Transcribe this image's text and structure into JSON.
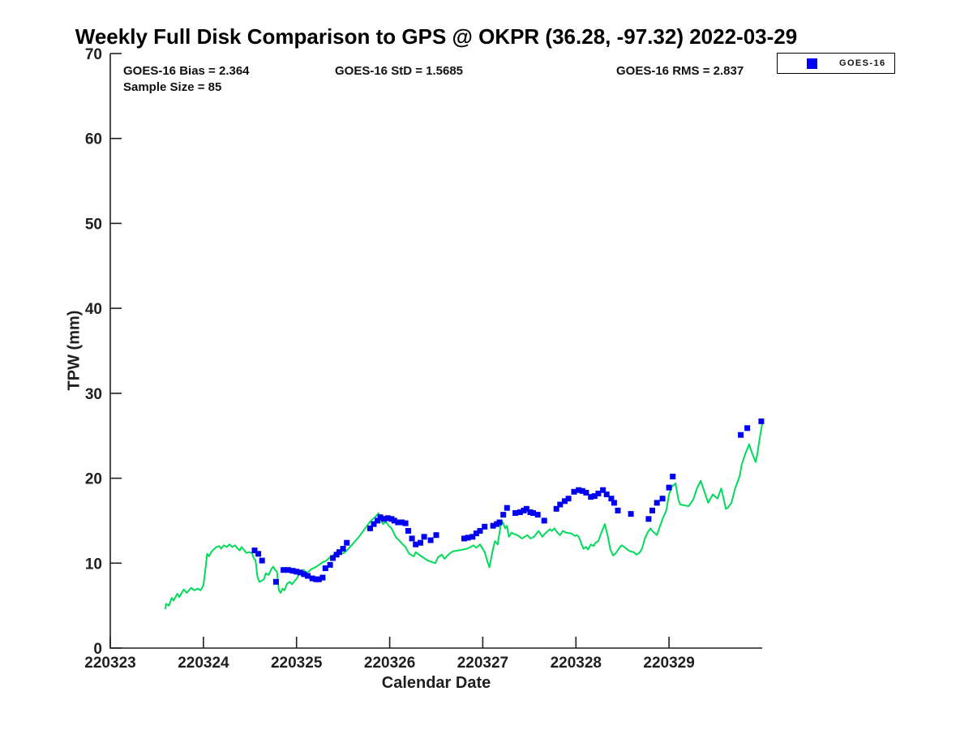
{
  "chart_data": {
    "type": "line",
    "title": "Weekly Full Disk Comparison to GPS @ OKPR (36.28, -97.32) 2022-03-29",
    "xlabel": "Calendar Date",
    "ylabel": "TPW (mm)",
    "xlim": [
      220323,
      220330
    ],
    "ylim": [
      0,
      70
    ],
    "xticks": [
      220323,
      220324,
      220325,
      220326,
      220327,
      220328,
      220329
    ],
    "yticks": [
      0,
      10,
      20,
      30,
      40,
      50,
      60,
      70
    ],
    "grid": false,
    "axis_color": "#1f1f1f",
    "annotations": {
      "bias": "GOES-16 Bias = 2.364",
      "std": "GOES-16 StD = 1.5685",
      "rms": "GOES-16 RMS = 2.837",
      "sample_size": "Sample Size = 85"
    },
    "legend": {
      "position": "top-right",
      "entries": [
        {
          "label": "GOES-16",
          "marker": "square",
          "color": "#0000f2"
        }
      ]
    },
    "series": [
      {
        "name": "GPS",
        "type": "line",
        "color": "#00dc5a",
        "points": [
          [
            220323.59,
            4.6
          ],
          [
            220323.6,
            5.2
          ],
          [
            220323.63,
            5.0
          ],
          [
            220323.66,
            5.9
          ],
          [
            220323.68,
            5.6
          ],
          [
            220323.72,
            6.4
          ],
          [
            220323.74,
            6.0
          ],
          [
            220323.79,
            6.9
          ],
          [
            220323.82,
            6.5
          ],
          [
            220323.87,
            7.1
          ],
          [
            220323.9,
            6.8
          ],
          [
            220323.94,
            7.0
          ],
          [
            220323.97,
            6.8
          ],
          [
            220324.0,
            7.4
          ],
          [
            220324.02,
            9.2
          ],
          [
            220324.04,
            11.1
          ],
          [
            220324.06,
            10.8
          ],
          [
            220324.09,
            11.4
          ],
          [
            220324.12,
            11.7
          ],
          [
            220324.14,
            11.9
          ],
          [
            220324.17,
            12.0
          ],
          [
            220324.19,
            11.7
          ],
          [
            220324.22,
            12.1
          ],
          [
            220324.25,
            11.9
          ],
          [
            220324.28,
            12.2
          ],
          [
            220324.31,
            11.9
          ],
          [
            220324.34,
            12.1
          ],
          [
            220324.36,
            11.8
          ],
          [
            220324.39,
            11.5
          ],
          [
            220324.41,
            11.9
          ],
          [
            220324.44,
            11.5
          ],
          [
            220324.46,
            11.2
          ],
          [
            220324.49,
            11.3
          ],
          [
            220324.52,
            11.2
          ],
          [
            220324.54,
            10.6
          ],
          [
            220324.56,
            10.3
          ],
          [
            220324.58,
            8.4
          ],
          [
            220324.6,
            7.8
          ],
          [
            220324.62,
            7.9
          ],
          [
            220324.65,
            8.1
          ],
          [
            220324.67,
            8.8
          ],
          [
            220324.7,
            8.6
          ],
          [
            220324.73,
            9.3
          ],
          [
            220324.75,
            9.6
          ],
          [
            220324.77,
            9.2
          ],
          [
            220324.79,
            9.0
          ],
          [
            220324.81,
            6.8
          ],
          [
            220324.83,
            6.5
          ],
          [
            220324.85,
            7.0
          ],
          [
            220324.87,
            6.8
          ],
          [
            220324.9,
            7.6
          ],
          [
            220324.93,
            7.8
          ],
          [
            220324.95,
            7.5
          ],
          [
            220324.98,
            7.9
          ],
          [
            220325.01,
            8.3
          ],
          [
            220325.03,
            9.0
          ],
          [
            220325.05,
            8.6
          ],
          [
            220325.08,
            9.2
          ],
          [
            220325.1,
            8.8
          ],
          [
            220325.13,
            9.0
          ],
          [
            220325.16,
            9.3
          ],
          [
            220325.2,
            9.5
          ],
          [
            220325.24,
            9.8
          ],
          [
            220325.28,
            10.1
          ],
          [
            220325.32,
            10.3
          ],
          [
            220325.36,
            10.7
          ],
          [
            220325.4,
            11.0
          ],
          [
            220325.44,
            11.3
          ],
          [
            220325.47,
            11.1
          ],
          [
            220325.51,
            11.2
          ],
          [
            220325.55,
            11.6
          ],
          [
            220325.59,
            12.1
          ],
          [
            220325.63,
            12.6
          ],
          [
            220325.67,
            13.1
          ],
          [
            220325.71,
            13.7
          ],
          [
            220325.75,
            14.3
          ],
          [
            220325.79,
            14.9
          ],
          [
            220325.83,
            15.3
          ],
          [
            220325.86,
            15.6
          ],
          [
            220325.88,
            15.9
          ],
          [
            220325.9,
            15.1
          ],
          [
            220325.93,
            14.6
          ],
          [
            220325.96,
            14.9
          ],
          [
            220325.99,
            14.4
          ],
          [
            220326.02,
            14.1
          ],
          [
            220326.07,
            13.0
          ],
          [
            220326.1,
            12.7
          ],
          [
            220326.14,
            12.2
          ],
          [
            220326.17,
            11.9
          ],
          [
            220326.21,
            11.1
          ],
          [
            220326.26,
            10.8
          ],
          [
            220326.28,
            11.3
          ],
          [
            220326.34,
            10.8
          ],
          [
            220326.41,
            10.3
          ],
          [
            220326.46,
            10.1
          ],
          [
            220326.49,
            10.0
          ],
          [
            220326.52,
            10.7
          ],
          [
            220326.56,
            11.0
          ],
          [
            220326.59,
            10.5
          ],
          [
            220326.64,
            11.1
          ],
          [
            220326.68,
            11.4
          ],
          [
            220326.74,
            11.5
          ],
          [
            220326.79,
            11.6
          ],
          [
            220326.83,
            11.7
          ],
          [
            220326.87,
            11.9
          ],
          [
            220326.9,
            12.1
          ],
          [
            220326.93,
            11.8
          ],
          [
            220326.97,
            12.2
          ],
          [
            220327.02,
            11.3
          ],
          [
            220327.05,
            10.2
          ],
          [
            220327.07,
            9.5
          ],
          [
            220327.11,
            11.7
          ],
          [
            220327.13,
            12.6
          ],
          [
            220327.16,
            12.2
          ],
          [
            220327.2,
            15.0
          ],
          [
            220327.22,
            14.7
          ],
          [
            220327.24,
            14.1
          ],
          [
            220327.26,
            14.4
          ],
          [
            220327.28,
            13.1
          ],
          [
            220327.31,
            13.6
          ],
          [
            220327.34,
            13.4
          ],
          [
            220327.37,
            13.3
          ],
          [
            220327.42,
            12.9
          ],
          [
            220327.45,
            13.1
          ],
          [
            220327.48,
            13.3
          ],
          [
            220327.51,
            12.9
          ],
          [
            220327.55,
            13.1
          ],
          [
            220327.6,
            13.8
          ],
          [
            220327.64,
            13.1
          ],
          [
            220327.67,
            13.5
          ],
          [
            220327.72,
            14.0
          ],
          [
            220327.74,
            13.8
          ],
          [
            220327.77,
            14.1
          ],
          [
            220327.8,
            13.6
          ],
          [
            220327.83,
            13.3
          ],
          [
            220327.86,
            13.8
          ],
          [
            220327.89,
            13.6
          ],
          [
            220327.95,
            13.5
          ],
          [
            220327.99,
            13.2
          ],
          [
            220328.01,
            13.3
          ],
          [
            220328.03,
            13.1
          ],
          [
            220328.08,
            11.7
          ],
          [
            220328.11,
            11.9
          ],
          [
            220328.13,
            11.6
          ],
          [
            220328.16,
            12.2
          ],
          [
            220328.19,
            12.0
          ],
          [
            220328.21,
            12.4
          ],
          [
            220328.24,
            12.6
          ],
          [
            220328.27,
            13.5
          ],
          [
            220328.31,
            14.6
          ],
          [
            220328.34,
            13.3
          ],
          [
            220328.37,
            11.6
          ],
          [
            220328.4,
            10.9
          ],
          [
            220328.43,
            11.2
          ],
          [
            220328.46,
            11.7
          ],
          [
            220328.49,
            12.1
          ],
          [
            220328.52,
            11.9
          ],
          [
            220328.55,
            11.6
          ],
          [
            220328.58,
            11.4
          ],
          [
            220328.62,
            11.3
          ],
          [
            220328.65,
            11.0
          ],
          [
            220328.68,
            11.2
          ],
          [
            220328.71,
            11.7
          ],
          [
            220328.74,
            12.9
          ],
          [
            220328.77,
            13.6
          ],
          [
            220328.8,
            14.1
          ],
          [
            220328.82,
            13.8
          ],
          [
            220328.87,
            13.3
          ],
          [
            220328.9,
            14.3
          ],
          [
            220328.93,
            15.2
          ],
          [
            220328.97,
            16.2
          ],
          [
            220329.0,
            18.1
          ],
          [
            220329.03,
            19.0
          ],
          [
            220329.07,
            19.4
          ],
          [
            220329.1,
            17.5
          ],
          [
            220329.12,
            16.9
          ],
          [
            220329.17,
            16.8
          ],
          [
            220329.21,
            16.7
          ],
          [
            220329.26,
            17.5
          ],
          [
            220329.3,
            18.8
          ],
          [
            220329.34,
            19.7
          ],
          [
            220329.38,
            18.4
          ],
          [
            220329.42,
            17.1
          ],
          [
            220329.47,
            18.1
          ],
          [
            220329.52,
            17.6
          ],
          [
            220329.56,
            18.8
          ],
          [
            220329.61,
            16.4
          ],
          [
            220329.63,
            16.5
          ],
          [
            220329.67,
            17.1
          ],
          [
            220329.71,
            18.8
          ],
          [
            220329.76,
            20.3
          ],
          [
            220329.78,
            21.6
          ],
          [
            220329.82,
            22.9
          ],
          [
            220329.86,
            24.0
          ],
          [
            220329.89,
            23.0
          ],
          [
            220329.93,
            21.9
          ],
          [
            220329.95,
            23.0
          ],
          [
            220329.97,
            24.5
          ],
          [
            220330.0,
            26.4
          ]
        ]
      },
      {
        "name": "GOES-16",
        "type": "scatter",
        "marker": "square",
        "marker_size": 7,
        "color": "#0000f2",
        "points": [
          [
            220324.55,
            11.5
          ],
          [
            220324.59,
            11.1
          ],
          [
            220324.63,
            10.3
          ],
          [
            220324.78,
            7.8
          ],
          [
            220324.86,
            9.2
          ],
          [
            220324.91,
            9.2
          ],
          [
            220324.96,
            9.1
          ],
          [
            220325.0,
            9.0
          ],
          [
            220325.04,
            8.9
          ],
          [
            220325.08,
            8.7
          ],
          [
            220325.12,
            8.5
          ],
          [
            220325.17,
            8.2
          ],
          [
            220325.21,
            8.1
          ],
          [
            220325.24,
            8.1
          ],
          [
            220325.28,
            8.3
          ],
          [
            220325.31,
            9.4
          ],
          [
            220325.36,
            9.8
          ],
          [
            220325.39,
            10.6
          ],
          [
            220325.43,
            11.0
          ],
          [
            220325.46,
            11.3
          ],
          [
            220325.5,
            11.7
          ],
          [
            220325.54,
            12.4
          ],
          [
            220325.79,
            14.1
          ],
          [
            220325.83,
            14.6
          ],
          [
            220325.87,
            15.0
          ],
          [
            220325.9,
            15.4
          ],
          [
            220325.94,
            15.2
          ],
          [
            220325.98,
            15.3
          ],
          [
            220326.02,
            15.2
          ],
          [
            220326.05,
            15.0
          ],
          [
            220326.09,
            14.8
          ],
          [
            220326.13,
            14.8
          ],
          [
            220326.17,
            14.7
          ],
          [
            220326.2,
            13.8
          ],
          [
            220326.24,
            12.9
          ],
          [
            220326.28,
            12.2
          ],
          [
            220326.33,
            12.4
          ],
          [
            220326.37,
            13.1
          ],
          [
            220326.44,
            12.7
          ],
          [
            220326.5,
            13.3
          ],
          [
            220326.8,
            12.9
          ],
          [
            220326.84,
            13.0
          ],
          [
            220326.89,
            13.1
          ],
          [
            220326.93,
            13.5
          ],
          [
            220326.97,
            13.8
          ],
          [
            220327.02,
            14.3
          ],
          [
            220327.11,
            14.4
          ],
          [
            220327.15,
            14.6
          ],
          [
            220327.18,
            14.8
          ],
          [
            220327.22,
            15.7
          ],
          [
            220327.26,
            16.5
          ],
          [
            220327.35,
            15.9
          ],
          [
            220327.4,
            16.0
          ],
          [
            220327.44,
            16.2
          ],
          [
            220327.47,
            16.4
          ],
          [
            220327.51,
            16.0
          ],
          [
            220327.54,
            15.9
          ],
          [
            220327.59,
            15.7
          ],
          [
            220327.66,
            15.0
          ],
          [
            220327.79,
            16.4
          ],
          [
            220327.83,
            16.9
          ],
          [
            220327.88,
            17.3
          ],
          [
            220327.92,
            17.6
          ],
          [
            220327.98,
            18.4
          ],
          [
            220328.03,
            18.6
          ],
          [
            220328.07,
            18.5
          ],
          [
            220328.11,
            18.3
          ],
          [
            220328.16,
            17.8
          ],
          [
            220328.2,
            17.9
          ],
          [
            220328.24,
            18.2
          ],
          [
            220328.29,
            18.6
          ],
          [
            220328.33,
            18.1
          ],
          [
            220328.38,
            17.6
          ],
          [
            220328.41,
            17.1
          ],
          [
            220328.45,
            16.2
          ],
          [
            220328.59,
            15.8
          ],
          [
            220328.78,
            15.2
          ],
          [
            220328.82,
            16.2
          ],
          [
            220328.87,
            17.1
          ],
          [
            220328.93,
            17.6
          ],
          [
            220329.0,
            18.9
          ],
          [
            220329.04,
            20.2
          ],
          [
            220329.77,
            25.1
          ],
          [
            220329.84,
            25.9
          ],
          [
            220329.99,
            26.7
          ]
        ]
      }
    ]
  }
}
